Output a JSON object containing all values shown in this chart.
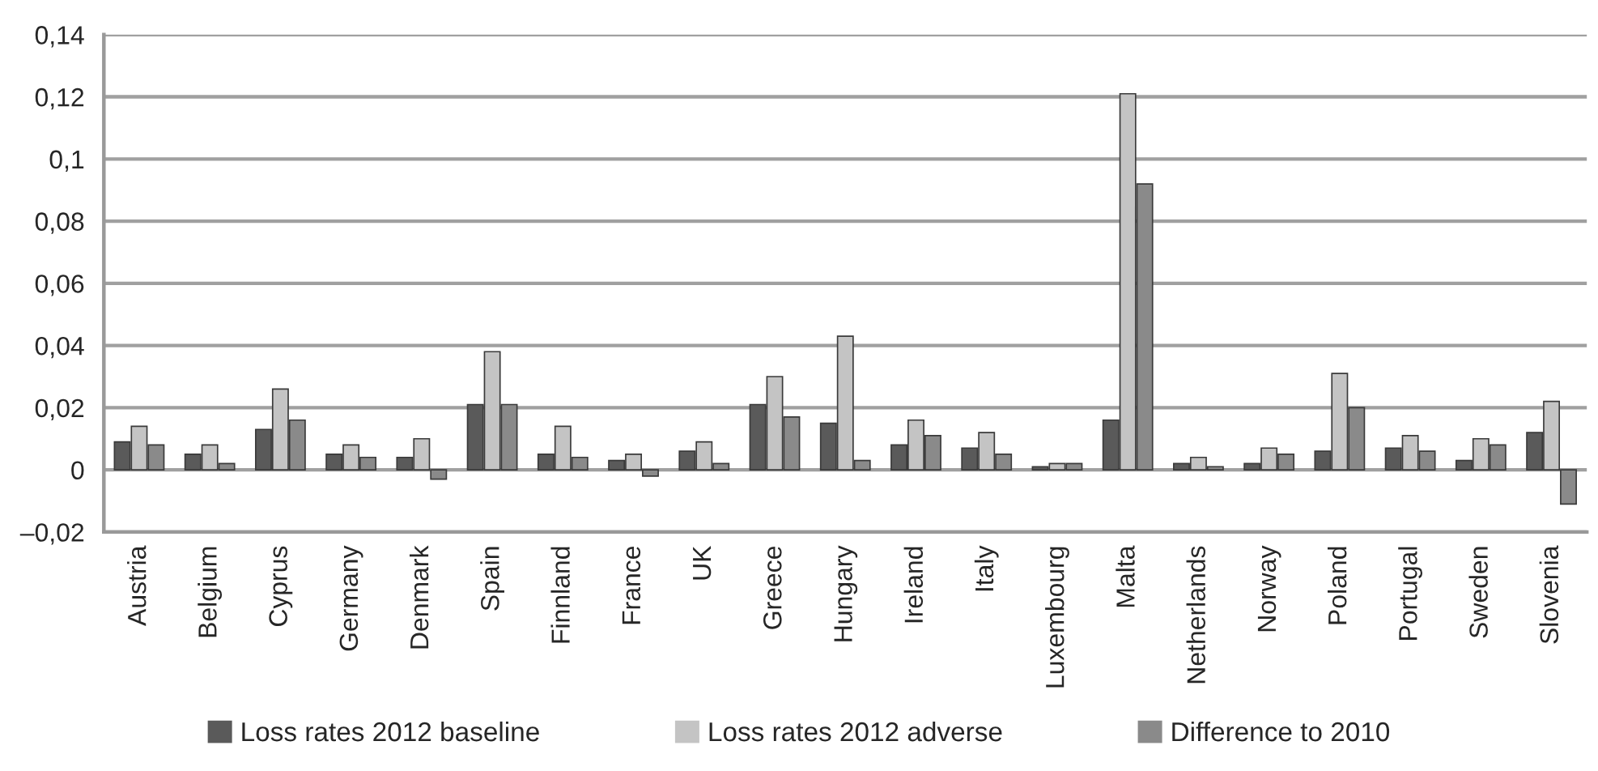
{
  "chart_data": {
    "type": "bar",
    "categories": [
      "Austria",
      "Belgium",
      "Cyprus",
      "Germany",
      "Denmark",
      "Spain",
      "Finnland",
      "France",
      "UK",
      "Greece",
      "Hungary",
      "Ireland",
      "Italy",
      "Luxembourg",
      "Malta",
      "Netherlands",
      "Norway",
      "Poland",
      "Portugal",
      "Sweden",
      "Slovenia"
    ],
    "series": [
      {
        "name": "Loss rates 2012 baseline",
        "color": "#5a5a5a",
        "values": [
          0.009,
          0.005,
          0.013,
          0.005,
          0.004,
          0.021,
          0.005,
          0.003,
          0.006,
          0.021,
          0.015,
          0.008,
          0.007,
          0.001,
          0.016,
          0.002,
          0.002,
          0.006,
          0.007,
          0.003,
          0.012
        ]
      },
      {
        "name": "Loss rates 2012 adverse",
        "color": "#c4c4c4",
        "values": [
          0.014,
          0.008,
          0.026,
          0.008,
          0.01,
          0.038,
          0.014,
          0.005,
          0.009,
          0.03,
          0.043,
          0.016,
          0.012,
          0.002,
          0.121,
          0.004,
          0.007,
          0.031,
          0.011,
          0.01,
          0.022
        ]
      },
      {
        "name": "Difference to 2010",
        "color": "#8a8a8a",
        "values": [
          0.008,
          0.002,
          0.016,
          0.004,
          -0.003,
          0.021,
          0.004,
          -0.002,
          0.002,
          0.017,
          0.003,
          0.011,
          0.005,
          0.002,
          0.092,
          0.001,
          0.005,
          0.02,
          0.006,
          0.008,
          -0.011
        ]
      }
    ],
    "ylim": [
      -0.02,
      0.14
    ],
    "yticks": [
      {
        "value": -0.02,
        "label": "–0,02"
      },
      0,
      {
        "value": 0.02,
        "label": "0,02"
      },
      {
        "value": 0.04,
        "label": "0,04"
      },
      {
        "value": 0.06,
        "label": "0,06"
      },
      {
        "value": 0.08,
        "label": "0,08"
      },
      {
        "value": 0.1,
        "label": "0,1"
      },
      {
        "value": 0.12,
        "label": "0,12"
      },
      {
        "value": 0.14,
        "label": "0,14"
      }
    ],
    "grid": "y",
    "legend": "bottom"
  }
}
